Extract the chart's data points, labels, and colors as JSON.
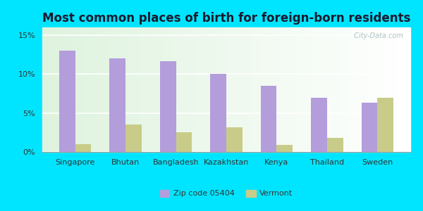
{
  "title": "Most common places of birth for foreign-born residents",
  "categories": [
    "Singapore",
    "Bhutan",
    "Bangladesh",
    "Kazakhstan",
    "Kenya",
    "Thailand",
    "Sweden"
  ],
  "zip_values": [
    13.0,
    12.0,
    11.7,
    10.0,
    8.5,
    7.0,
    6.3
  ],
  "vt_values": [
    1.0,
    3.5,
    2.5,
    3.2,
    0.9,
    1.8,
    7.0
  ],
  "zip_color": "#b39ddb",
  "vt_color": "#c8cc88",
  "bg_outer": "#00e5ff",
  "title_fontsize": 12,
  "title_color": "#1a1a2e",
  "bar_width": 0.32,
  "ylim": [
    0,
    16
  ],
  "yticks": [
    0,
    5,
    10,
    15
  ],
  "ytick_labels": [
    "0%",
    "5%",
    "10%",
    "15%"
  ],
  "legend_zip": "Zip code 05404",
  "legend_vt": "Vermont",
  "watermark": "  City-Data.com",
  "tick_fontsize": 8,
  "legend_fontsize": 8
}
